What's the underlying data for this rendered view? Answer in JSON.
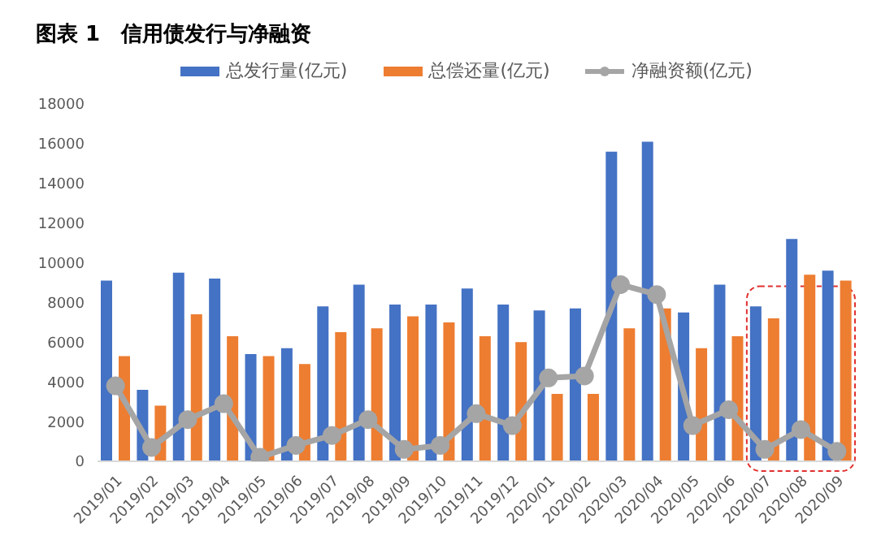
{
  "chart_data": {
    "type": "bar",
    "title": "图表 1　信用债发行与净融资",
    "categories": [
      "2019/01",
      "2019/02",
      "2019/03",
      "2019/04",
      "2019/05",
      "2019/06",
      "2019/07",
      "2019/08",
      "2019/09",
      "2019/10",
      "2019/11",
      "2019/12",
      "2020/01",
      "2020/02",
      "2020/03",
      "2020/04",
      "2020/05",
      "2020/06",
      "2020/07",
      "2020/08",
      "2020/09"
    ],
    "series": [
      {
        "name": "总发行量(亿元)",
        "color": "#4472c4",
        "values": [
          9100,
          3600,
          9500,
          9200,
          5400,
          5700,
          7800,
          8900,
          7900,
          7900,
          8700,
          7900,
          7600,
          7700,
          15600,
          16100,
          7500,
          8900,
          7800,
          11200,
          9600
        ]
      },
      {
        "name": "总偿还量(亿元)",
        "color": "#ed7d31",
        "values": [
          5300,
          2800,
          7400,
          6300,
          5300,
          4900,
          6500,
          6700,
          7300,
          7000,
          6300,
          6000,
          3400,
          3400,
          6700,
          7700,
          5700,
          6300,
          7200,
          9400,
          9100
        ]
      },
      {
        "name": "净融资额(亿元)",
        "type": "line",
        "color": "#a5a5a5",
        "values": [
          3800,
          700,
          2100,
          2900,
          200,
          800,
          1300,
          2100,
          600,
          800,
          2400,
          1800,
          4200,
          4300,
          8900,
          8400,
          1800,
          2600,
          600,
          1600,
          500
        ]
      }
    ],
    "ylim": [
      0,
      18000
    ],
    "yticks": [
      0,
      2000,
      4000,
      6000,
      8000,
      10000,
      12000,
      14000,
      16000,
      18000
    ],
    "marker": "circle",
    "legend": "top"
  }
}
